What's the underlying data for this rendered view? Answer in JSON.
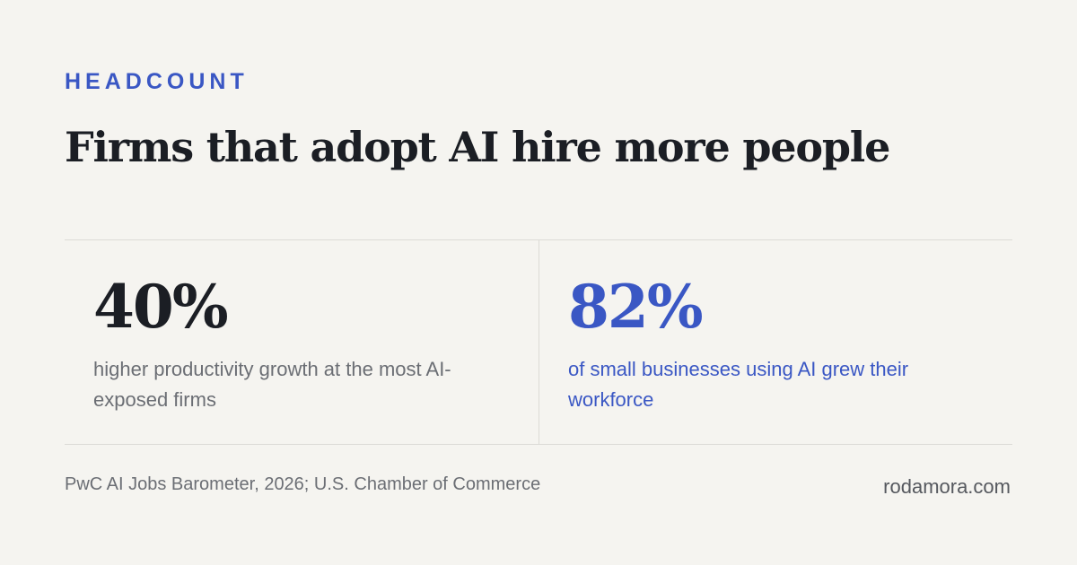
{
  "eyebrow": "HEADCOUNT",
  "title": "Firms that adopt AI hire more people",
  "stats": [
    {
      "value": "40%",
      "caption": "higher productivity growth at the most AI-exposed firms"
    },
    {
      "value": "82%",
      "caption": "of small businesses using AI grew their workforce"
    }
  ],
  "footer": {
    "source": "PwC AI Jobs Barometer,  2026; U.S. Chamber of Commerce",
    "site": "rodamora.com"
  },
  "colors": {
    "background": "#f5f4f0",
    "accent": "#3a57c4",
    "heading": "#1b1e24",
    "muted": "#6b6e74",
    "rule": "#dcdbd6"
  }
}
